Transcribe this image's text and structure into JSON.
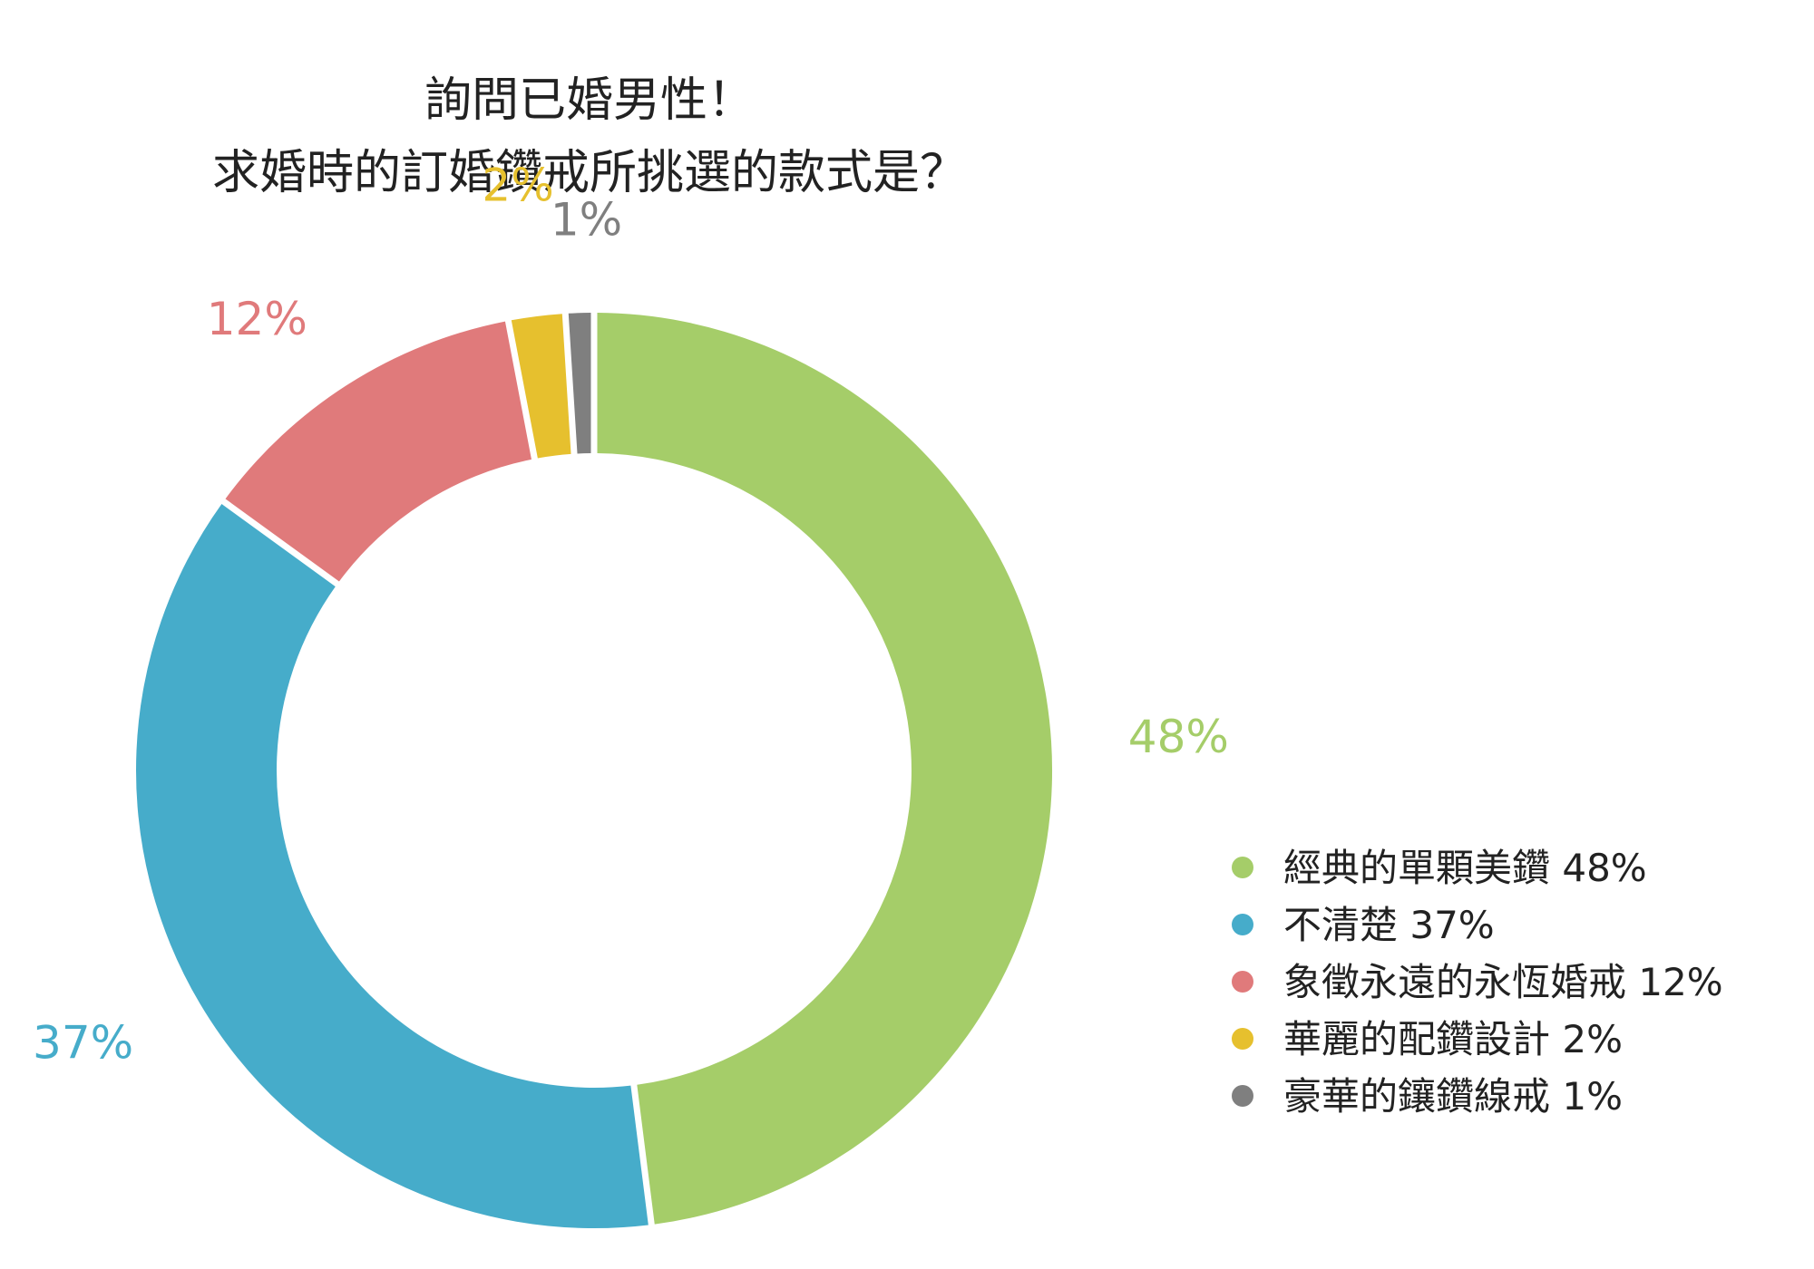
{
  "chart_data": {
    "type": "pie",
    "variant": "donut",
    "title_lines": [
      "詢問已婚男性！",
      "求婚時的訂婚鑽戒所挑選的款式是？"
    ],
    "unit": "%",
    "legend_position": "right-bottom",
    "slices": [
      {
        "label": "經典的單顆美鑽",
        "value": 48,
        "value_label": "48%",
        "legend_text": "經典的單顆美鑽 48%",
        "color": "#a5cd69"
      },
      {
        "label": "不清楚",
        "value": 37,
        "value_label": "37%",
        "legend_text": "不清楚 37%",
        "color": "#46acca"
      },
      {
        "label": "象徵永遠的永恆婚戒",
        "value": 12,
        "value_label": "12%",
        "legend_text": "象徵永遠的永恆婚戒 12%",
        "color": "#e07a7b"
      },
      {
        "label": "華麗的配鑽設計",
        "value": 2,
        "value_label": "2%",
        "legend_text": "華麗的配鑽設計 2%",
        "color": "#e6c02e"
      },
      {
        "label": "豪華的鑲鑽線戒",
        "value": 1,
        "value_label": "1%",
        "legend_text": "豪華的鑲鑽線戒 1%",
        "color": "#7f7f7f"
      }
    ]
  }
}
